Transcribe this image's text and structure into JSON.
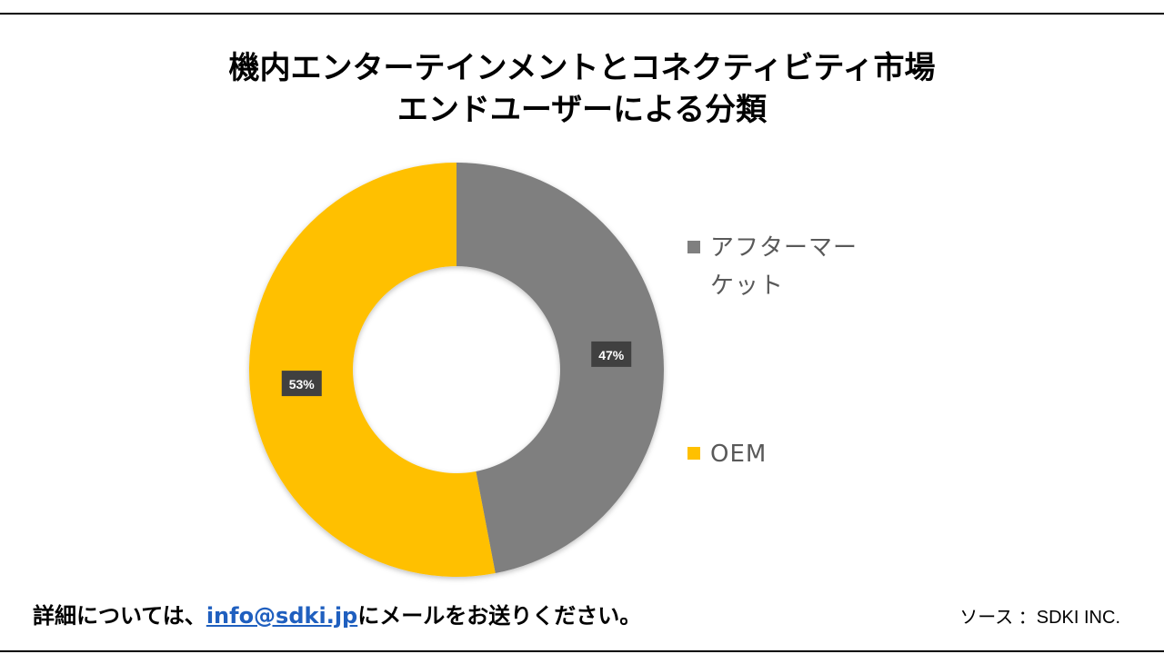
{
  "title": {
    "line1": "機内エンターテインメントとコネクティビティ市場",
    "line2": "エンドユーザーによる分類"
  },
  "chart_data": {
    "type": "pie",
    "variant": "donut",
    "title": "機内エンターテインメントとコネクティビティ市場 エンドユーザーによる分類",
    "categories": [
      "アフターマーケット",
      "OEM"
    ],
    "values": [
      47,
      53
    ],
    "labels": [
      "47%",
      "53%"
    ],
    "colors": [
      "#7f7f7f",
      "#ffc000"
    ],
    "legend_position": "right"
  },
  "legend": {
    "items": [
      {
        "label_line1": "アフターマー",
        "label_line2": "ケット",
        "color": "#7f7f7f"
      },
      {
        "label_line1": "OEM",
        "label_line2": "",
        "color": "#ffc000"
      }
    ]
  },
  "footer": {
    "prefix": "詳細については、",
    "email": "info@sdki.jp",
    "suffix": "にメールをお送りください。",
    "source": "ソース ：SDKI INC."
  }
}
